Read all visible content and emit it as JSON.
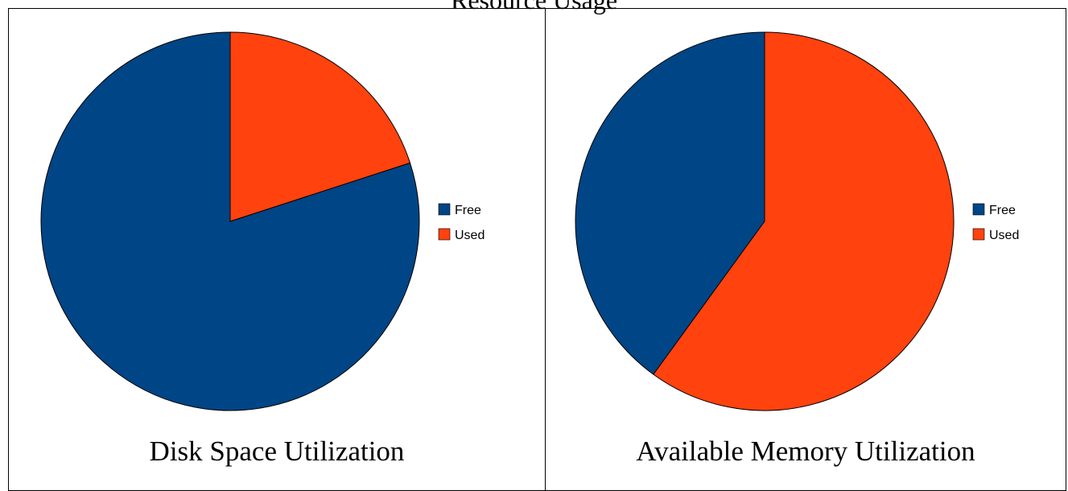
{
  "page": {
    "title": "Resource Usage"
  },
  "colors": {
    "free": "#004586",
    "used": "#ff420e",
    "outline": "#000000"
  },
  "chart_data": [
    {
      "type": "pie",
      "title": "Disk Space Utilization",
      "categories": [
        "Free",
        "Used"
      ],
      "values": [
        80,
        20
      ],
      "legend": "right"
    },
    {
      "type": "pie",
      "title": "Available Memory Utilization",
      "categories": [
        "Free",
        "Used"
      ],
      "values": [
        40,
        60
      ],
      "legend": "right"
    }
  ]
}
